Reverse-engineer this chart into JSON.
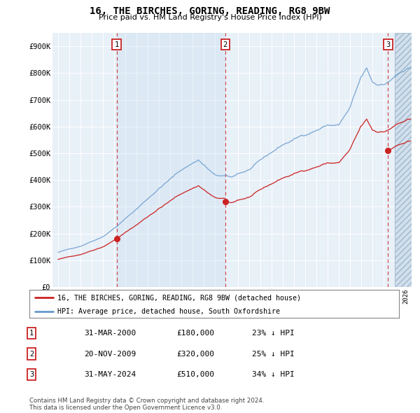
{
  "title": "16, THE BIRCHES, GORING, READING, RG8 9BW",
  "subtitle": "Price paid vs. HM Land Registry's House Price Index (HPI)",
  "ylim": [
    0,
    950000
  ],
  "yticks": [
    0,
    100000,
    200000,
    300000,
    400000,
    500000,
    600000,
    700000,
    800000,
    900000
  ],
  "ytick_labels": [
    "£0",
    "£100K",
    "£200K",
    "£300K",
    "£400K",
    "£500K",
    "£600K",
    "£700K",
    "£800K",
    "£900K"
  ],
  "hpi_color": "#6699cc",
  "price_color": "#cc2222",
  "shaded_color": "#d0e4f7",
  "sale_times": [
    2000.21,
    2009.88,
    2024.41
  ],
  "sale_prices": [
    180000,
    320000,
    510000
  ],
  "sale_labels": [
    "1",
    "2",
    "3"
  ],
  "legend_price_label": "16, THE BIRCHES, GORING, READING, RG8 9BW (detached house)",
  "legend_hpi_label": "HPI: Average price, detached house, South Oxfordshire",
  "table_rows": [
    [
      "1",
      "31-MAR-2000",
      "£180,000",
      "23% ↓ HPI"
    ],
    [
      "2",
      "20-NOV-2009",
      "£320,000",
      "25% ↓ HPI"
    ],
    [
      "3",
      "31-MAY-2024",
      "£510,000",
      "34% ↓ HPI"
    ]
  ],
  "footer": "Contains HM Land Registry data © Crown copyright and database right 2024.\nThis data is licensed under the Open Government Licence v3.0.",
  "plot_bg_color": "#e8f0f8",
  "hatch_region_color": "#c8d8e8",
  "xlim_start": 1994.5,
  "xlim_end": 2026.5
}
